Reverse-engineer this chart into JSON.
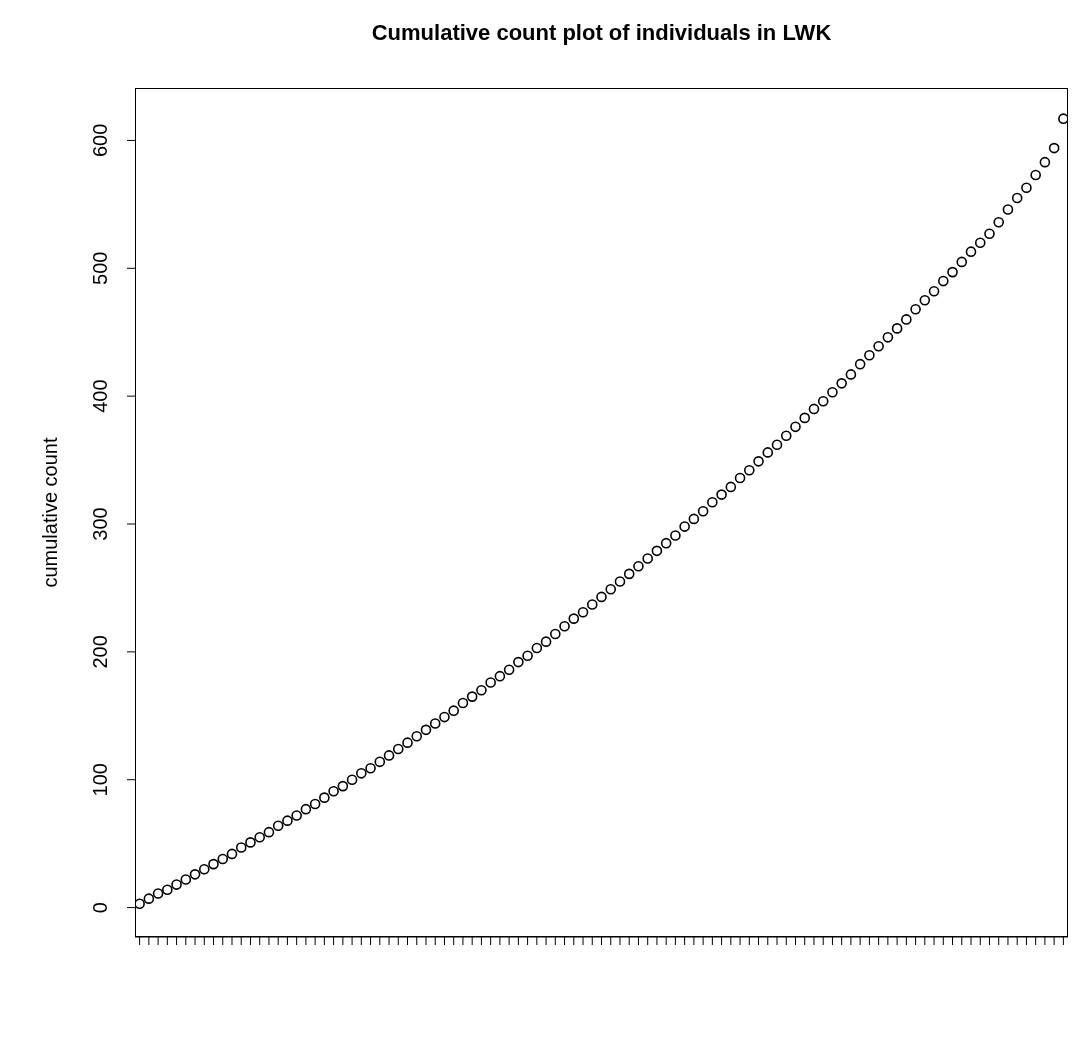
{
  "chart_data": {
    "type": "scatter",
    "title": "Cumulative count plot of individuals in LWK",
    "ylabel": "cumulative count",
    "categories": [
      null,
      null,
      null,
      null,
      null,
      null,
      null,
      null,
      null,
      null,
      null,
      null,
      null,
      null,
      null,
      null,
      null,
      null,
      null,
      null,
      null,
      null,
      null,
      null,
      null,
      null,
      null,
      null,
      null,
      null,
      null,
      null,
      null,
      null,
      null,
      null,
      null,
      null,
      null,
      null,
      null,
      null,
      null,
      null,
      null,
      null,
      null,
      null,
      null,
      null,
      null,
      null,
      null,
      null,
      null,
      null,
      null,
      null,
      null,
      null,
      null,
      null,
      null,
      null,
      null,
      null,
      null,
      null,
      null,
      null,
      null,
      null,
      null,
      null,
      null,
      null,
      null,
      null,
      null,
      null,
      null,
      null,
      null,
      null,
      null,
      null,
      null,
      null,
      null,
      null,
      null,
      null,
      null,
      null,
      null,
      null,
      null,
      null,
      null,
      null,
      null
    ],
    "values": [
      3,
      7,
      11,
      14,
      18,
      22,
      26,
      30,
      34,
      38,
      42,
      47,
      51,
      55,
      59,
      64,
      68,
      72,
      77,
      81,
      86,
      91,
      95,
      100,
      105,
      109,
      114,
      119,
      124,
      129,
      134,
      139,
      144,
      149,
      154,
      160,
      165,
      170,
      176,
      181,
      186,
      192,
      197,
      203,
      208,
      214,
      220,
      226,
      231,
      237,
      243,
      249,
      255,
      261,
      267,
      273,
      279,
      285,
      291,
      298,
      304,
      310,
      317,
      323,
      329,
      336,
      342,
      349,
      356,
      362,
      369,
      376,
      383,
      390,
      396,
      403,
      410,
      417,
      425,
      432,
      439,
      446,
      453,
      460,
      468,
      475,
      482,
      490,
      497,
      505,
      513,
      520,
      527,
      536,
      546,
      555,
      563,
      573,
      583,
      594,
      617
    ],
    "color": "#000000",
    "marker": "circle",
    "ylim": [
      -23,
      641
    ],
    "yticks": [
      0,
      100,
      200,
      300,
      400,
      500,
      600
    ]
  }
}
